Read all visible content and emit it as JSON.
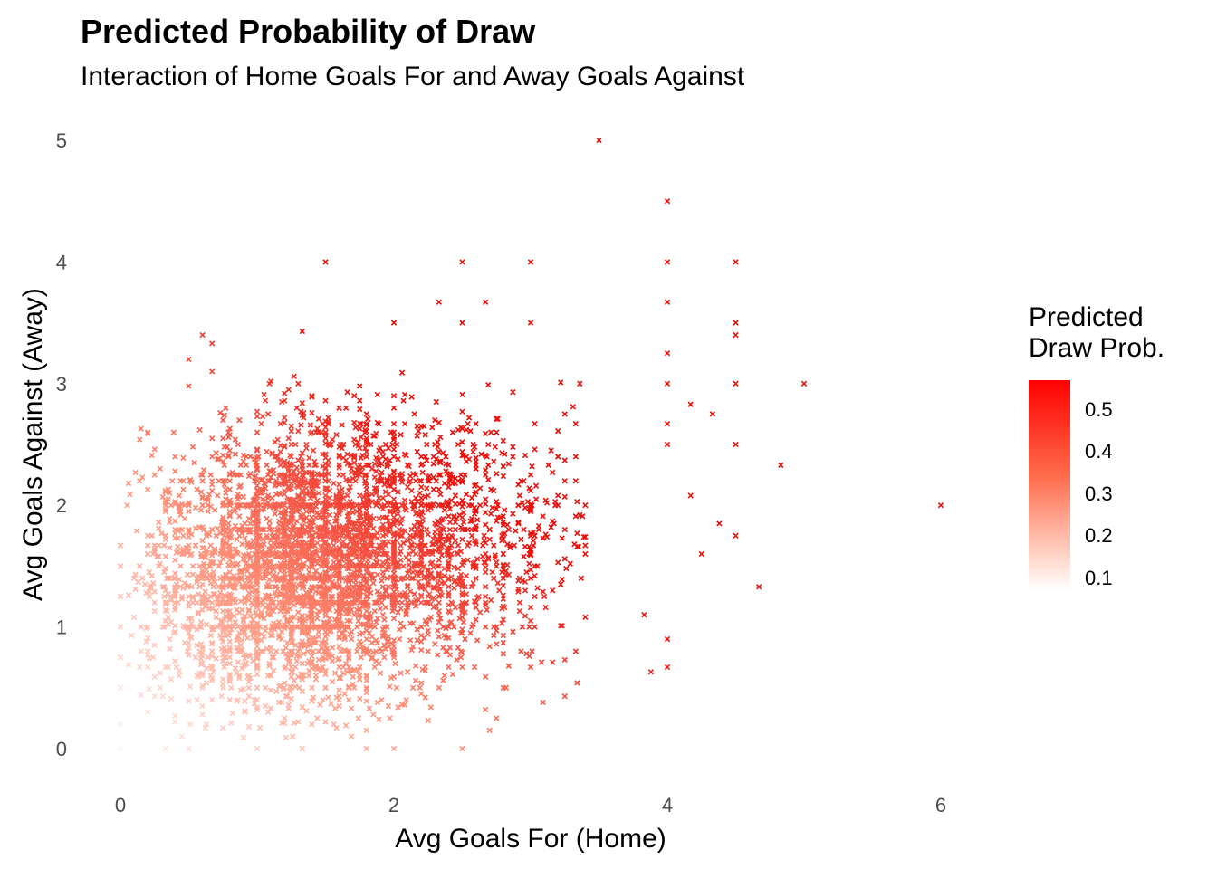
{
  "chart_data": {
    "type": "scatter",
    "title": "Predicted Probability of Draw",
    "subtitle": "Interaction of Home Goals For and Away Goals Against",
    "xlabel": "Avg Goals For (Home)",
    "ylabel": "Avg Goals Against (Away)",
    "xlim": [
      -0.3,
      6.4
    ],
    "ylim": [
      -0.25,
      5.2
    ],
    "x_ticks": [
      "0",
      "2",
      "4",
      "6"
    ],
    "y_ticks": [
      "0",
      "1",
      "2",
      "3",
      "4",
      "5"
    ],
    "marker": "x",
    "grid": false,
    "legend": {
      "title_line1": "Predicted",
      "title_line2": "Draw Prob.",
      "placement": "right",
      "range": [
        0.1,
        0.57
      ],
      "labels": [
        "0.5",
        "0.4",
        "0.3",
        "0.2",
        "0.1"
      ],
      "low_color": "#ffffff",
      "high_color": "#ff0000"
    },
    "points": [
      [
        3.5,
        5.0
      ],
      [
        4.0,
        4.5
      ],
      [
        1.5,
        4.0
      ],
      [
        2.5,
        4.0
      ],
      [
        3.0,
        4.0
      ],
      [
        4.0,
        4.0
      ],
      [
        4.5,
        4.0
      ],
      [
        2.33,
        3.67
      ],
      [
        2.67,
        3.67
      ],
      [
        4.0,
        3.67
      ],
      [
        4.5,
        3.5
      ],
      [
        2.0,
        3.5
      ],
      [
        2.5,
        3.5
      ],
      [
        3.0,
        3.5
      ],
      [
        0.5,
        3.2
      ],
      [
        0.6,
        3.4
      ],
      [
        0.67,
        3.33
      ],
      [
        1.33,
        3.43
      ],
      [
        4.5,
        3.4
      ],
      [
        4.0,
        3.25
      ],
      [
        4.0,
        3.0
      ],
      [
        4.5,
        3.0
      ],
      [
        5.0,
        3.0
      ],
      [
        4.17,
        2.83
      ],
      [
        4.33,
        2.75
      ],
      [
        4.0,
        2.67
      ],
      [
        4.0,
        2.5
      ],
      [
        4.5,
        2.5
      ],
      [
        4.83,
        2.33
      ],
      [
        4.17,
        2.08
      ],
      [
        4.38,
        1.85
      ],
      [
        4.5,
        1.75
      ],
      [
        4.25,
        1.6
      ],
      [
        4.67,
        1.33
      ],
      [
        6.0,
        2.0
      ],
      [
        3.88,
        0.63
      ],
      [
        4.0,
        0.67
      ],
      [
        4.0,
        0.9
      ],
      [
        3.83,
        1.1
      ],
      [
        2.5,
        0.0
      ],
      [
        1.8,
        0.0
      ],
      [
        2.0,
        0.0
      ],
      [
        1.0,
        0.0
      ],
      [
        1.33,
        0.0
      ],
      [
        0.5,
        0.0
      ],
      [
        0.33,
        0.0
      ],
      [
        0.0,
        0.0
      ],
      [
        0.0,
        0.2
      ],
      [
        0.0,
        0.5
      ],
      [
        0.0,
        0.75
      ],
      [
        0.0,
        1.0
      ],
      [
        0.0,
        1.25
      ],
      [
        0.0,
        1.5
      ],
      [
        0.0,
        1.67
      ],
      [
        2.75,
        0.25
      ],
      [
        3.25,
        0.43
      ],
      [
        3.0,
        0.67
      ],
      [
        3.33,
        0.8
      ],
      [
        2.67,
        1.0
      ]
    ],
    "cloud": {
      "point_count": 4500,
      "x_center": 1.45,
      "x_spread": 0.62,
      "y_center": 1.55,
      "y_spread": 0.55,
      "correlation": 0.15
    }
  }
}
